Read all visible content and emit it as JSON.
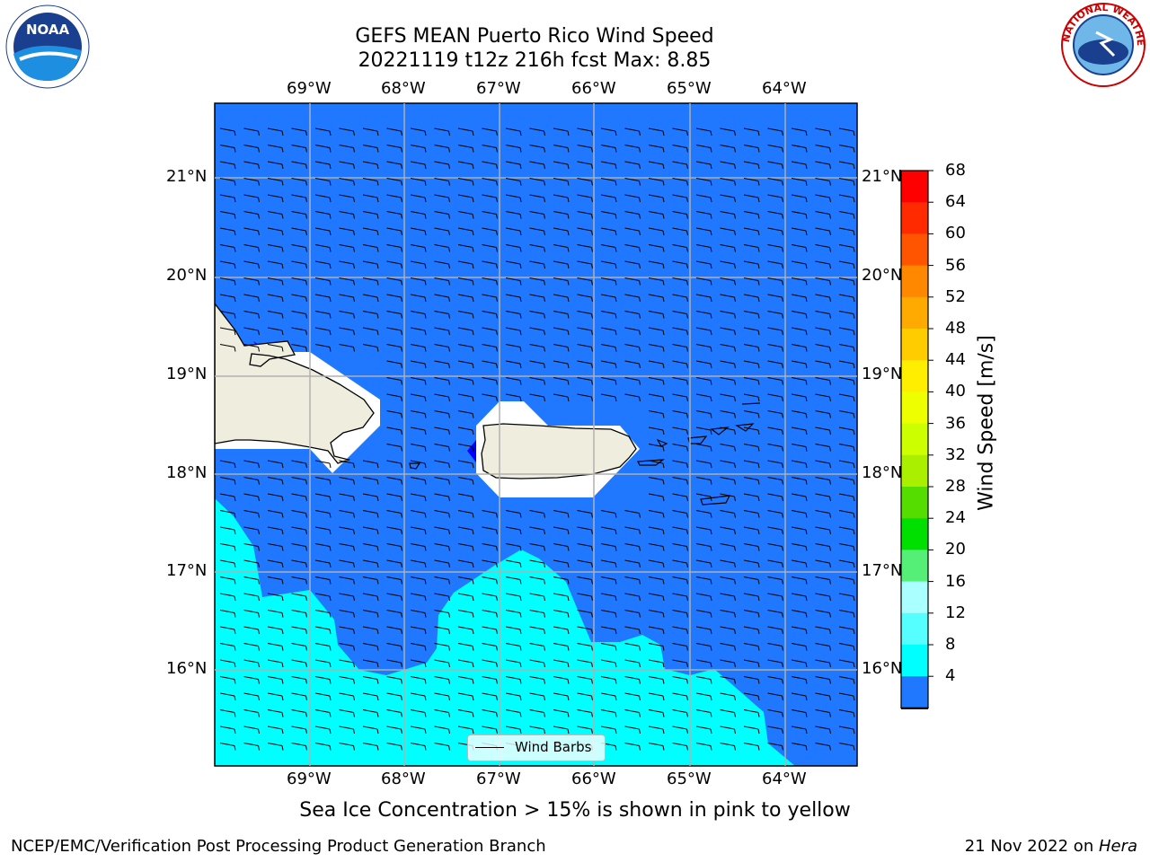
{
  "header": {
    "title_line1": "GEFS MEAN Puerto Rico Wind Speed",
    "title_line2": "20221119 t12z 216h fcst   Max: 8.85"
  },
  "logos": {
    "left": "NOAA",
    "right": "NATIONAL WEATHER SERVICE"
  },
  "map": {
    "lon_labels": [
      "69°W",
      "68°W",
      "67°W",
      "66°W",
      "65°W",
      "64°W"
    ],
    "lat_labels": [
      "21°N",
      "20°N",
      "19°N",
      "18°N",
      "17°N",
      "16°N"
    ],
    "legend_label": "Wind Barbs",
    "colors": {
      "ocean": "#1f78ff",
      "fast": "#00ffff",
      "land": "#efeede",
      "mask": "#ffffff"
    }
  },
  "colorbar": {
    "label": "Wind Speed [m/s]",
    "ticks": [
      "68",
      "64",
      "60",
      "56",
      "52",
      "48",
      "44",
      "40",
      "36",
      "32",
      "28",
      "24",
      "20",
      "16",
      "12",
      "8",
      "4"
    ],
    "colors": [
      "#ff0000",
      "#ff2a00",
      "#ff5500",
      "#ff8800",
      "#ffaa00",
      "#ffcc00",
      "#ffee00",
      "#eeff00",
      "#ccff00",
      "#aaee00",
      "#55dd00",
      "#00e000",
      "#55ee77",
      "#aaffff",
      "#55ffff",
      "#00ffff",
      "#1f78ff"
    ],
    "under_color": "#0000ff"
  },
  "notes": {
    "sea_ice": "Sea Ice Concentration > 15% is shown in pink to yellow"
  },
  "footer": {
    "left": "NCEP/EMC/Verification Post Processing Product Generation Branch",
    "right_prefix": "21 Nov 2022 on ",
    "right_machine": "Hera"
  }
}
